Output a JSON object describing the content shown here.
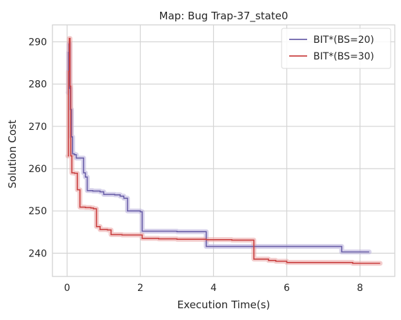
{
  "chart_data": {
    "type": "line",
    "title": "Map: Bug Trap-37_state0",
    "xlabel": "Execution Time(s)",
    "ylabel": "Solution Cost",
    "xlim": [
      -0.4,
      8.95
    ],
    "ylim": [
      234.5,
      294
    ],
    "xticks": [
      0,
      2,
      4,
      6,
      8
    ],
    "yticks": [
      240,
      250,
      260,
      270,
      280,
      290
    ],
    "grid": true,
    "legend_position": "top-right",
    "series": [
      {
        "name": "BIT*(BS=20)",
        "color": "#6a5fa8",
        "band_color": "#b7addb",
        "x": [
          0.03,
          0.04,
          0.05,
          0.07,
          0.09,
          0.12,
          0.15,
          0.2,
          0.25,
          0.35,
          0.45,
          0.5,
          0.55,
          0.7,
          0.9,
          1.0,
          1.3,
          1.45,
          1.55,
          1.65,
          1.75,
          2.0,
          2.05,
          2.5,
          3.0,
          3.75,
          3.8,
          5.5,
          7.2,
          7.5,
          8.25
        ],
        "y": [
          278.0,
          287.5,
          289.5,
          279.0,
          274.0,
          267.5,
          263.5,
          263.3,
          262.5,
          262.5,
          259.0,
          258.0,
          254.8,
          254.7,
          254.5,
          253.9,
          253.8,
          253.5,
          253.0,
          250.0,
          250.0,
          249.8,
          245.2,
          245.2,
          245.1,
          245.1,
          241.6,
          241.6,
          241.6,
          240.3,
          240.3
        ]
      },
      {
        "name": "BIT*(BS=30)",
        "color": "#c94040",
        "band_color": "#e9a3a3",
        "x": [
          0.02,
          0.04,
          0.06,
          0.08,
          0.1,
          0.13,
          0.2,
          0.28,
          0.35,
          0.5,
          0.65,
          0.72,
          0.8,
          0.9,
          1.1,
          1.2,
          1.5,
          2.0,
          2.05,
          2.5,
          3.0,
          3.7,
          3.8,
          4.5,
          5.05,
          5.1,
          5.5,
          5.7,
          6.0,
          7.5,
          7.8,
          8.3,
          8.55
        ],
        "y": [
          263.0,
          283.0,
          290.8,
          279.5,
          263.0,
          259.0,
          258.9,
          255.0,
          250.9,
          250.8,
          250.7,
          250.5,
          246.3,
          245.6,
          245.5,
          244.4,
          244.3,
          244.3,
          243.5,
          243.4,
          243.3,
          243.3,
          243.2,
          243.1,
          243.1,
          238.6,
          238.3,
          238.1,
          237.8,
          237.8,
          237.6,
          237.6,
          237.6
        ]
      }
    ]
  }
}
